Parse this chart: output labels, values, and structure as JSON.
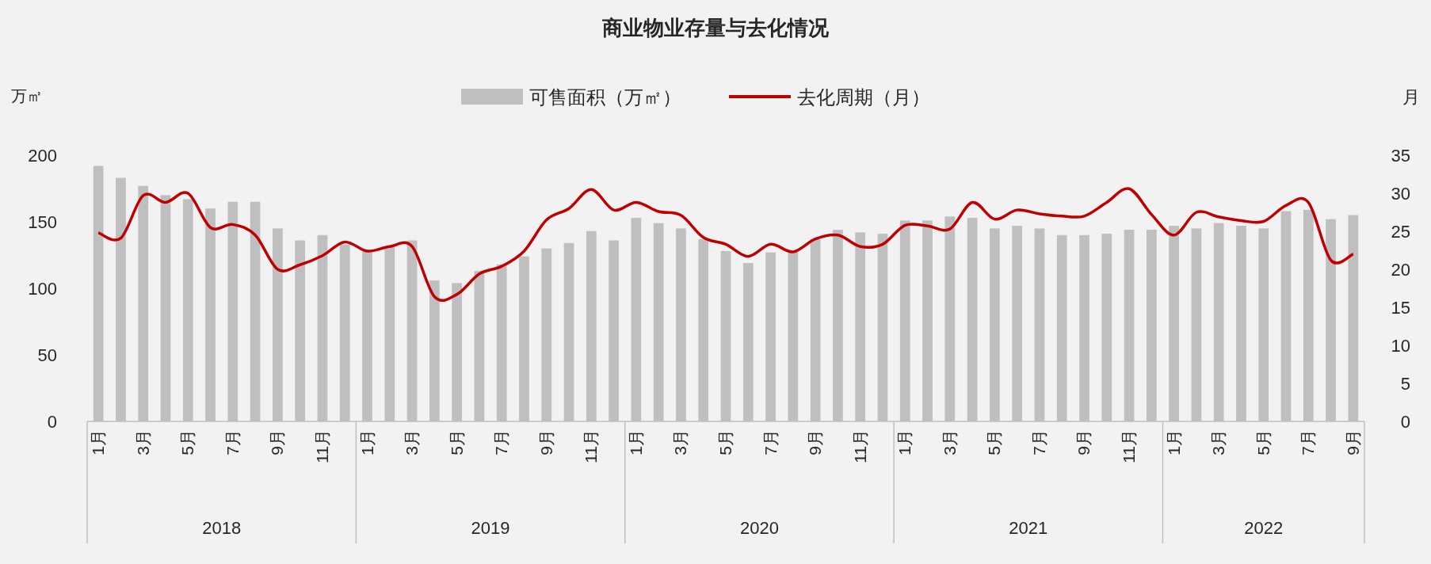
{
  "chart_data": {
    "type": "bar",
    "title": "商业物业存量与去化情况",
    "ylabel": "万㎡",
    "y2label": "月",
    "legend": "top",
    "categories": [
      "1月",
      null,
      "3月",
      null,
      "5月",
      null,
      "7月",
      null,
      "9月",
      null,
      "11月",
      null,
      "1月",
      null,
      "3月",
      null,
      "5月",
      null,
      "7月",
      null,
      "9月",
      null,
      "11月",
      null,
      "1月",
      null,
      "3月",
      null,
      "5月",
      null,
      "7月",
      null,
      "9月",
      null,
      "11月",
      null,
      "1月",
      null,
      "3月",
      null,
      "5月",
      null,
      "7月",
      null,
      "9月",
      null,
      "11月",
      null,
      "1月",
      null,
      "3月",
      null,
      "5月",
      null,
      "7月",
      null,
      "9月"
    ],
    "annotations": [
      "2018",
      "2019",
      "2020",
      "2021",
      "2022"
    ],
    "ylim": [
      0,
      200
    ],
    "yticks": [
      0,
      50,
      100,
      150,
      200
    ],
    "y2lim": [
      0,
      35
    ],
    "y2ticks": [
      0,
      5,
      10,
      15,
      20,
      25,
      30,
      35
    ],
    "series": [
      {
        "name": "可售面积（万㎡）",
        "color": "#bfbfbf",
        "values": [
          192,
          183,
          177,
          170,
          167,
          160,
          165,
          165,
          145,
          136,
          140,
          133,
          128,
          131,
          136,
          106,
          104,
          113,
          118,
          124,
          130,
          134,
          143,
          136,
          153,
          149,
          145,
          137,
          128,
          119,
          127,
          128,
          137,
          144,
          142,
          141,
          151,
          151,
          154,
          153,
          145,
          147,
          145,
          140,
          140,
          141,
          144,
          144,
          147,
          145,
          149,
          147,
          145,
          158,
          159,
          152,
          155
        ]
      },
      {
        "name": "去化周期（月）",
        "type": "line",
        "axis": "y2",
        "color": "#c00000",
        "values": [
          24.8,
          24.1,
          29.7,
          28.8,
          30,
          25.5,
          25.9,
          24.5,
          20,
          20.6,
          21.8,
          23.6,
          22.4,
          23,
          23,
          16.4,
          16.7,
          19.4,
          20.4,
          22.4,
          26.5,
          28,
          30.5,
          27.8,
          28.8,
          27.6,
          27.1,
          24.2,
          23.3,
          21.7,
          23.3,
          22.3,
          24,
          24.5,
          23,
          23.3,
          25.8,
          25.7,
          25.3,
          28.8,
          26.6,
          27.8,
          27.3,
          27,
          27,
          28.8,
          30.6,
          27.2,
          24.5,
          27.5,
          26.9,
          26.4,
          26.3,
          28.4,
          28.8,
          21.2,
          22
        ]
      }
    ]
  }
}
